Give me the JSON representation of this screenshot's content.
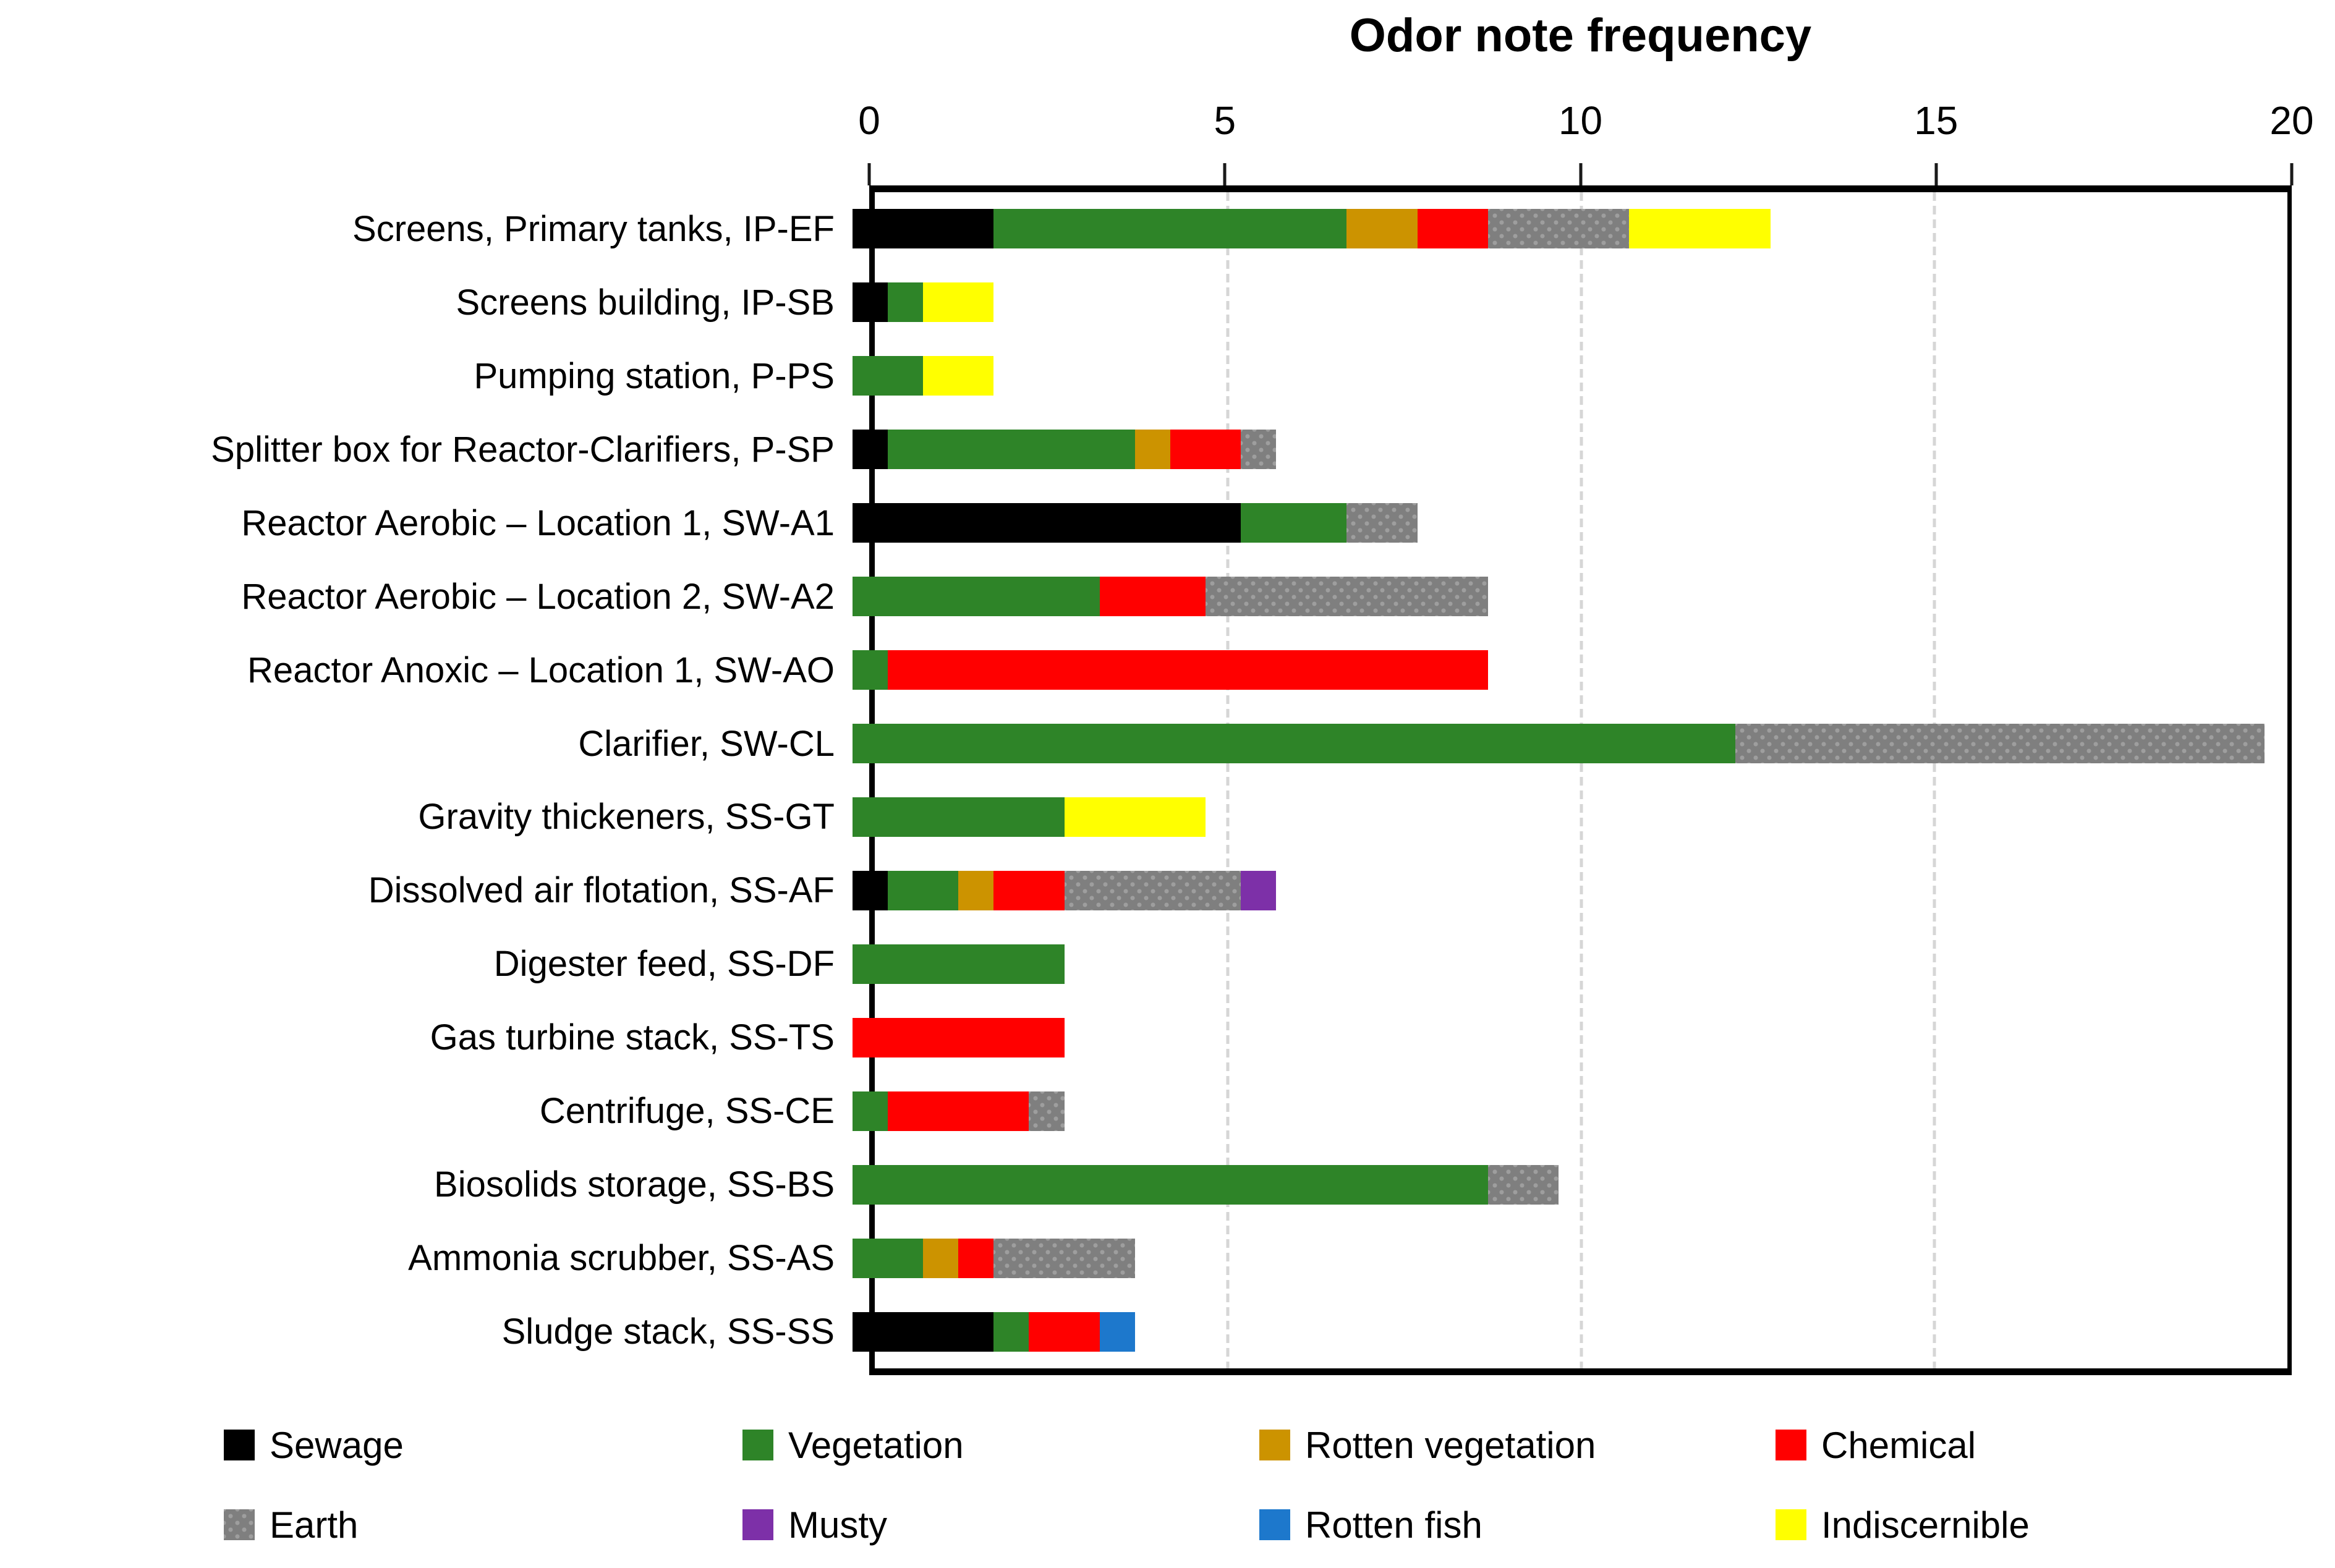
{
  "title": "Odor note frequency",
  "x_axis": {
    "tick_labels": [
      "0",
      "5",
      "10",
      "15",
      "20"
    ],
    "tick_values": [
      0,
      5,
      10,
      15,
      20
    ],
    "max": 20
  },
  "chart_data": {
    "type": "bar",
    "orientation": "horizontal",
    "stacked": true,
    "title": "Odor note frequency",
    "xlabel": "",
    "ylabel": "",
    "xlim": [
      0,
      20
    ],
    "x_ticks": [
      0,
      5,
      10,
      15,
      20
    ],
    "grid": "vertical gridlines at 5, 10, 15",
    "legend_position": "bottom, 2 rows x 4 columns",
    "categories": [
      "Screens, Primary tanks, IP-EF",
      "Screens building, IP-SB",
      "Pumping station, P-PS",
      "Splitter box for Reactor-Clarifiers, P-SP",
      "Reactor Aerobic – Location 1, SW-A1",
      "Reactor Aerobic – Location 2, SW-A2",
      "Reactor Anoxic – Location 1, SW-AO",
      "Clarifier, SW-CL",
      "Gravity thickeners, SS-GT",
      "Dissolved air flotation, SS-AF",
      "Digester feed, SS-DF",
      "Gas turbine stack, SS-TS",
      "Centrifuge, SS-CE",
      "Biosolids storage, SS-BS",
      "Ammonia scrubber, SS-AS",
      "Sludge stack, SS-SS"
    ],
    "series": [
      {
        "name": "Sewage",
        "color": "#000000",
        "pattern": "solid",
        "values": [
          2,
          0.5,
          0,
          0.5,
          5.5,
          0,
          0,
          0,
          0,
          0.5,
          0,
          0,
          0,
          0,
          0,
          2
        ]
      },
      {
        "name": "Vegetation",
        "color": "#2E8428",
        "pattern": "solid",
        "values": [
          5,
          0.5,
          1,
          3.5,
          1.5,
          3.5,
          0.5,
          12.5,
          3,
          1,
          3,
          0,
          0.5,
          9,
          1,
          0.5
        ]
      },
      {
        "name": "Rotten vegetation",
        "color": "#CC9300",
        "pattern": "solid",
        "values": [
          1,
          0,
          0,
          0.5,
          0,
          0,
          0,
          0,
          0,
          0.5,
          0,
          0,
          0,
          0,
          0.5,
          0
        ]
      },
      {
        "name": "Chemical",
        "color": "#FF0000",
        "pattern": "solid",
        "values": [
          1,
          0,
          0,
          1,
          0,
          1.5,
          8.5,
          0,
          0,
          1,
          0,
          3,
          2,
          0,
          0.5,
          1
        ]
      },
      {
        "name": "Earth",
        "color": "#7F7F7F",
        "pattern": "dots",
        "values": [
          2,
          0,
          0,
          0.5,
          1,
          4,
          0,
          7.5,
          0,
          2.5,
          0,
          0,
          0.5,
          1,
          2,
          0
        ]
      },
      {
        "name": "Musty",
        "color": "#7D30A8",
        "pattern": "solid",
        "values": [
          0,
          0,
          0,
          0,
          0,
          0,
          0,
          0,
          0,
          0.5,
          0,
          0,
          0,
          0,
          0,
          0
        ]
      },
      {
        "name": "Rotten fish",
        "color": "#1D78CC",
        "pattern": "solid",
        "values": [
          0,
          0,
          0,
          0,
          0,
          0,
          0,
          0,
          0,
          0,
          0,
          0,
          0,
          0,
          0,
          0.5
        ]
      },
      {
        "name": "Indiscernible",
        "color": "#FFFF00",
        "pattern": "solid",
        "values": [
          2,
          1,
          1,
          0,
          0,
          0,
          0,
          0,
          2,
          0,
          0,
          0,
          0,
          0,
          0,
          0
        ]
      }
    ],
    "totals": [
      13,
      2,
      2,
      6,
      8,
      9,
      9,
      20,
      5,
      6,
      3,
      3,
      3,
      10,
      4,
      4
    ]
  },
  "legend": {
    "rows": [
      [
        "Sewage",
        "Vegetation",
        "Rotten vegetation",
        "Chemical"
      ],
      [
        "Earth",
        "Musty",
        "Rotten fish",
        "Indiscernible"
      ]
    ]
  }
}
